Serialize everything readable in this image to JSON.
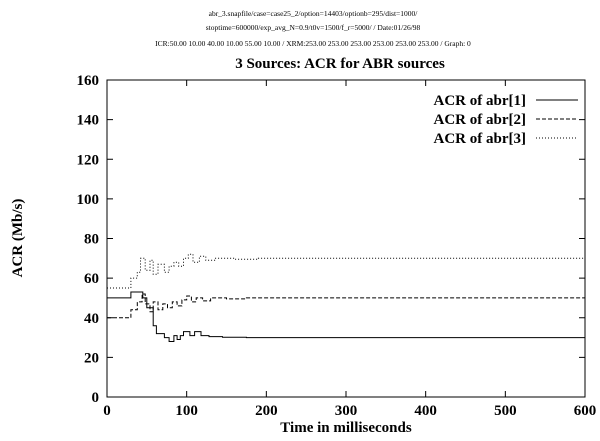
{
  "header": {
    "line1": "abr_3.snapfile/case=case25_2/option=14403/optionb=295/dist=1000/",
    "line2": "stoptime=600000/exp_avg_N=0.9/t0v=1500/f_r=5000/ / Date:01/26/98",
    "line3": "ICR:50.00 10.00 40.00 10.00 55.00 10.00 / XRM:253.00 253.00 253.00 253.00 253.00 253.00 / Graph: 0"
  },
  "chart_data": {
    "type": "line",
    "title": "3 Sources: ACR for ABR sources",
    "xlabel": "Time in milliseconds",
    "ylabel": "ACR (Mb/s)",
    "xlim": [
      0,
      600
    ],
    "ylim": [
      0,
      160
    ],
    "xticks": [
      0,
      100,
      200,
      300,
      400,
      500,
      600
    ],
    "yticks": [
      0,
      20,
      40,
      60,
      80,
      100,
      120,
      140,
      160
    ],
    "grid": false,
    "legend_position": "top-right",
    "series": [
      {
        "name": "ACR of abr[1]",
        "style": "solid",
        "points": [
          [
            0,
            50
          ],
          [
            30,
            50
          ],
          [
            30,
            53
          ],
          [
            45,
            53
          ],
          [
            45,
            50
          ],
          [
            50,
            50
          ],
          [
            50,
            45
          ],
          [
            58,
            45
          ],
          [
            58,
            36
          ],
          [
            62,
            36
          ],
          [
            62,
            32
          ],
          [
            72,
            32
          ],
          [
            72,
            30
          ],
          [
            78,
            30
          ],
          [
            78,
            28
          ],
          [
            84,
            28
          ],
          [
            84,
            31
          ],
          [
            88,
            31
          ],
          [
            88,
            29
          ],
          [
            92,
            29
          ],
          [
            92,
            31
          ],
          [
            96,
            31
          ],
          [
            96,
            33
          ],
          [
            104,
            33
          ],
          [
            104,
            31
          ],
          [
            110,
            31
          ],
          [
            110,
            33
          ],
          [
            118,
            33
          ],
          [
            118,
            31
          ],
          [
            128,
            31
          ],
          [
            128,
            30.5
          ],
          [
            145,
            30.5
          ],
          [
            145,
            30.2
          ],
          [
            175,
            30.2
          ],
          [
            175,
            30
          ],
          [
            600,
            30
          ]
        ]
      },
      {
        "name": "ACR of abr[2]",
        "style": "dashed",
        "points": [
          [
            0,
            40
          ],
          [
            30,
            40
          ],
          [
            30,
            44
          ],
          [
            38,
            44
          ],
          [
            38,
            48
          ],
          [
            44,
            48
          ],
          [
            44,
            52
          ],
          [
            48,
            52
          ],
          [
            48,
            47
          ],
          [
            54,
            47
          ],
          [
            54,
            43
          ],
          [
            58,
            43
          ],
          [
            58,
            48
          ],
          [
            64,
            48
          ],
          [
            64,
            44
          ],
          [
            70,
            44
          ],
          [
            70,
            47
          ],
          [
            76,
            47
          ],
          [
            76,
            45
          ],
          [
            82,
            45
          ],
          [
            82,
            48
          ],
          [
            88,
            48
          ],
          [
            88,
            46
          ],
          [
            94,
            46
          ],
          [
            94,
            49
          ],
          [
            100,
            49
          ],
          [
            100,
            51
          ],
          [
            106,
            51
          ],
          [
            106,
            48
          ],
          [
            112,
            48
          ],
          [
            112,
            50
          ],
          [
            120,
            50
          ],
          [
            120,
            48.5
          ],
          [
            130,
            48.5
          ],
          [
            130,
            50
          ],
          [
            150,
            50
          ],
          [
            150,
            49.5
          ],
          [
            175,
            49.5
          ],
          [
            175,
            50
          ],
          [
            600,
            50
          ]
        ]
      },
      {
        "name": "ACR of abr[3]",
        "style": "dotted",
        "points": [
          [
            0,
            55
          ],
          [
            30,
            55
          ],
          [
            30,
            60
          ],
          [
            38,
            60
          ],
          [
            38,
            63
          ],
          [
            42,
            63
          ],
          [
            42,
            70
          ],
          [
            48,
            70
          ],
          [
            48,
            64
          ],
          [
            54,
            64
          ],
          [
            54,
            69
          ],
          [
            58,
            69
          ],
          [
            58,
            62
          ],
          [
            64,
            62
          ],
          [
            64,
            67
          ],
          [
            72,
            67
          ],
          [
            72,
            63
          ],
          [
            78,
            63
          ],
          [
            78,
            66
          ],
          [
            84,
            66
          ],
          [
            84,
            68
          ],
          [
            90,
            68
          ],
          [
            90,
            66
          ],
          [
            96,
            66
          ],
          [
            96,
            70
          ],
          [
            102,
            70
          ],
          [
            102,
            72
          ],
          [
            108,
            72
          ],
          [
            108,
            68
          ],
          [
            116,
            68
          ],
          [
            116,
            71
          ],
          [
            124,
            71
          ],
          [
            124,
            69
          ],
          [
            135,
            69
          ],
          [
            135,
            70
          ],
          [
            160,
            70
          ],
          [
            160,
            69.5
          ],
          [
            190,
            69.5
          ],
          [
            190,
            70
          ],
          [
            600,
            70
          ]
        ]
      }
    ]
  }
}
